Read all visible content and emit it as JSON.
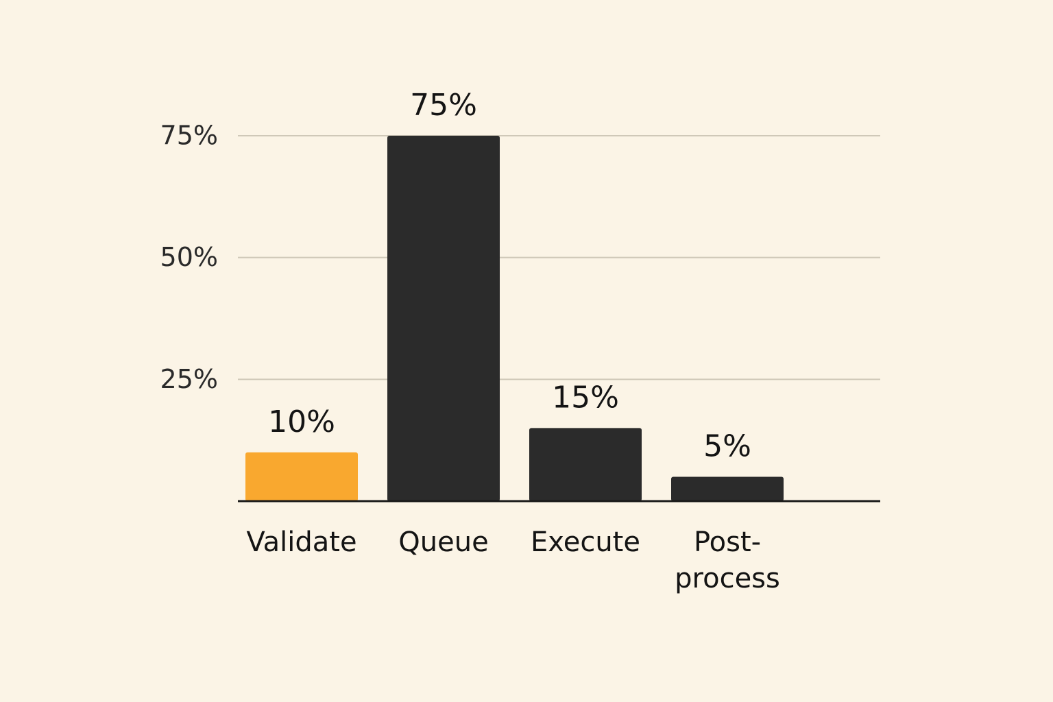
{
  "chart_data": {
    "type": "bar",
    "categories": [
      "Validate",
      "Queue",
      "Execute",
      "Post-process"
    ],
    "values": [
      10,
      75,
      15,
      5
    ],
    "value_labels": [
      "10%",
      "75%",
      "15%",
      "5%"
    ],
    "colors": [
      "#f9a82f",
      "#2b2b2b",
      "#2b2b2b",
      "#2b2b2b"
    ],
    "ylim": [
      0,
      75
    ],
    "yticks": [
      {
        "value": 25,
        "label": "25%"
      },
      {
        "value": 50,
        "label": "50%"
      },
      {
        "value": 75,
        "label": "75%"
      }
    ],
    "grid": true
  }
}
